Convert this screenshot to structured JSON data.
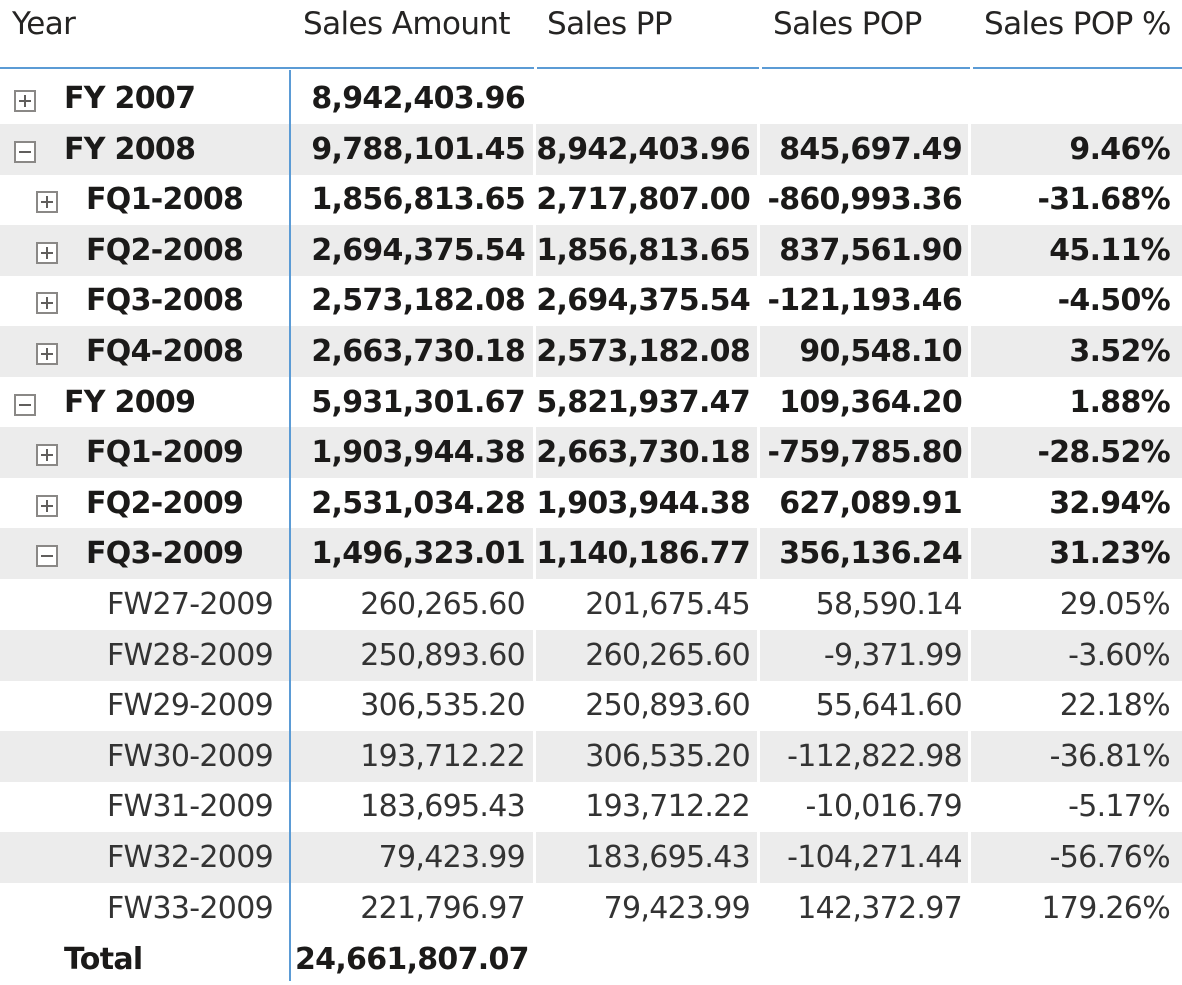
{
  "columns": {
    "year": "Year",
    "sales_amount": "Sales Amount",
    "sales_pp": "Sales PP",
    "sales_pop": "Sales POP",
    "sales_pop_pct": "Sales POP %"
  },
  "rows": [
    {
      "label": "FY 2007",
      "level": 0,
      "toggle": "expand",
      "bold": true,
      "sales_amount": "8,942,403.96",
      "sales_pp": "",
      "sales_pop": "",
      "sales_pop_pct": ""
    },
    {
      "label": "FY 2008",
      "level": 0,
      "toggle": "collapse",
      "bold": true,
      "sales_amount": "9,788,101.45",
      "sales_pp": "8,942,403.96",
      "sales_pop": "845,697.49",
      "sales_pop_pct": "9.46%"
    },
    {
      "label": "FQ1-2008",
      "level": 1,
      "toggle": "expand",
      "bold": true,
      "sales_amount": "1,856,813.65",
      "sales_pp": "2,717,807.00",
      "sales_pop": "-860,993.36",
      "sales_pop_pct": "-31.68%"
    },
    {
      "label": "FQ2-2008",
      "level": 1,
      "toggle": "expand",
      "bold": true,
      "sales_amount": "2,694,375.54",
      "sales_pp": "1,856,813.65",
      "sales_pop": "837,561.90",
      "sales_pop_pct": "45.11%"
    },
    {
      "label": "FQ3-2008",
      "level": 1,
      "toggle": "expand",
      "bold": true,
      "sales_amount": "2,573,182.08",
      "sales_pp": "2,694,375.54",
      "sales_pop": "-121,193.46",
      "sales_pop_pct": "-4.50%"
    },
    {
      "label": "FQ4-2008",
      "level": 1,
      "toggle": "expand",
      "bold": true,
      "sales_amount": "2,663,730.18",
      "sales_pp": "2,573,182.08",
      "sales_pop": "90,548.10",
      "sales_pop_pct": "3.52%"
    },
    {
      "label": "FY 2009",
      "level": 0,
      "toggle": "collapse",
      "bold": true,
      "sales_amount": "5,931,301.67",
      "sales_pp": "5,821,937.47",
      "sales_pop": "109,364.20",
      "sales_pop_pct": "1.88%"
    },
    {
      "label": "FQ1-2009",
      "level": 1,
      "toggle": "expand",
      "bold": true,
      "sales_amount": "1,903,944.38",
      "sales_pp": "2,663,730.18",
      "sales_pop": "-759,785.80",
      "sales_pop_pct": "-28.52%"
    },
    {
      "label": "FQ2-2009",
      "level": 1,
      "toggle": "expand",
      "bold": true,
      "sales_amount": "2,531,034.28",
      "sales_pp": "1,903,944.38",
      "sales_pop": "627,089.91",
      "sales_pop_pct": "32.94%"
    },
    {
      "label": "FQ3-2009",
      "level": 1,
      "toggle": "collapse",
      "bold": true,
      "sales_amount": "1,496,323.01",
      "sales_pp": "1,140,186.77",
      "sales_pop": "356,136.24",
      "sales_pop_pct": "31.23%"
    },
    {
      "label": "FW27-2009",
      "level": 2,
      "toggle": "none",
      "bold": false,
      "sales_amount": "260,265.60",
      "sales_pp": "201,675.45",
      "sales_pop": "58,590.14",
      "sales_pop_pct": "29.05%"
    },
    {
      "label": "FW28-2009",
      "level": 2,
      "toggle": "none",
      "bold": false,
      "sales_amount": "250,893.60",
      "sales_pp": "260,265.60",
      "sales_pop": "-9,371.99",
      "sales_pop_pct": "-3.60%"
    },
    {
      "label": "FW29-2009",
      "level": 2,
      "toggle": "none",
      "bold": false,
      "sales_amount": "306,535.20",
      "sales_pp": "250,893.60",
      "sales_pop": "55,641.60",
      "sales_pop_pct": "22.18%"
    },
    {
      "label": "FW30-2009",
      "level": 2,
      "toggle": "none",
      "bold": false,
      "sales_amount": "193,712.22",
      "sales_pp": "306,535.20",
      "sales_pop": "-112,822.98",
      "sales_pop_pct": "-36.81%"
    },
    {
      "label": "FW31-2009",
      "level": 2,
      "toggle": "none",
      "bold": false,
      "sales_amount": "183,695.43",
      "sales_pp": "193,712.22",
      "sales_pop": "-10,016.79",
      "sales_pop_pct": "-5.17%"
    },
    {
      "label": "FW32-2009",
      "level": 2,
      "toggle": "none",
      "bold": false,
      "sales_amount": "79,423.99",
      "sales_pp": "183,695.43",
      "sales_pop": "-104,271.44",
      "sales_pop_pct": "-56.76%"
    },
    {
      "label": "FW33-2009",
      "level": 2,
      "toggle": "none",
      "bold": false,
      "sales_amount": "221,796.97",
      "sales_pp": "79,423.99",
      "sales_pop": "142,372.97",
      "sales_pop_pct": "179.26%"
    }
  ],
  "total": {
    "label": "Total",
    "sales_amount": "24,661,807.07"
  },
  "colors": {
    "accent": "#5b9bd5",
    "row_shade": "#ececec"
  }
}
